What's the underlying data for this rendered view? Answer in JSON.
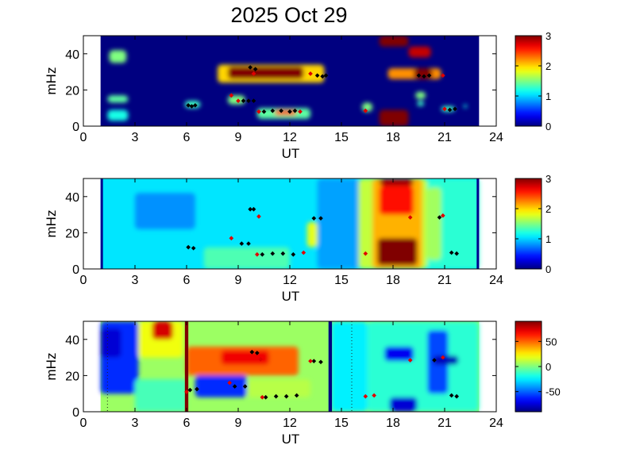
{
  "chart_data": {
    "type": "heatmap",
    "title": "2025 Oct 29",
    "panels": [
      {
        "id": "panel-1",
        "xlabel": "UT",
        "ylabel": "mHz",
        "xlim": [
          0,
          24
        ],
        "ylim": [
          0,
          50
        ],
        "x_ticks": [
          0,
          3,
          6,
          9,
          12,
          15,
          18,
          21,
          24
        ],
        "y_ticks": [
          0,
          20,
          40
        ],
        "data_x_range": [
          1,
          23
        ],
        "colorbar": {
          "min": 0,
          "max": 3,
          "ticks": [
            0,
            1,
            2,
            3
          ],
          "colormap": "jet"
        },
        "background_value": 0,
        "regions": [
          {
            "x0": 1.5,
            "x1": 2.5,
            "y0": 35,
            "y1": 42,
            "value": 1.5
          },
          {
            "x0": 1.4,
            "x1": 2.6,
            "y0": 13,
            "y1": 17,
            "value": 1.4
          },
          {
            "x0": 1.4,
            "x1": 2.6,
            "y0": 3,
            "y1": 9,
            "value": 1.2
          },
          {
            "x0": 5.9,
            "x1": 6.8,
            "y0": 10,
            "y1": 14,
            "value": 1.3
          },
          {
            "x0": 8.4,
            "x1": 9.4,
            "y0": 12,
            "y1": 17,
            "value": 1.5
          },
          {
            "x0": 7.8,
            "x1": 14.0,
            "y0": 24,
            "y1": 34,
            "value": 2.0
          },
          {
            "x0": 8.4,
            "x1": 12.8,
            "y0": 26,
            "y1": 33,
            "value": 3.0
          },
          {
            "x0": 10.1,
            "x1": 13.2,
            "y0": 4,
            "y1": 10,
            "value": 1.4
          },
          {
            "x0": 11.1,
            "x1": 12.4,
            "y0": 6,
            "y1": 9,
            "value": 2.5
          },
          {
            "x0": 16.2,
            "x1": 16.8,
            "y0": 8,
            "y1": 13,
            "value": 1.5
          },
          {
            "x0": 17.2,
            "x1": 18.9,
            "y0": 0,
            "y1": 9,
            "value": 3.0
          },
          {
            "x0": 17.2,
            "x1": 18.9,
            "y0": 44,
            "y1": 50,
            "value": 3.0
          },
          {
            "x0": 18.9,
            "x1": 20.2,
            "y0": 38,
            "y1": 44,
            "value": 2.8
          },
          {
            "x0": 17.7,
            "x1": 20.8,
            "y0": 26,
            "y1": 32,
            "value": 2.2
          },
          {
            "x0": 19.2,
            "x1": 20.3,
            "y0": 26,
            "y1": 32,
            "value": 3.0
          },
          {
            "x0": 19.3,
            "x1": 19.9,
            "y0": 15,
            "y1": 19,
            "value": 1.5
          },
          {
            "x0": 19.4,
            "x1": 19.8,
            "y0": 11,
            "y1": 14,
            "value": 1.3
          },
          {
            "x0": 20.8,
            "x1": 21.6,
            "y0": 8,
            "y1": 11,
            "value": 1.3
          },
          {
            "x0": 22.1,
            "x1": 22.3,
            "y0": 10,
            "y1": 12,
            "value": 1.2
          }
        ],
        "black_points": [
          [
            6.1,
            11.5
          ],
          [
            6.3,
            11
          ],
          [
            6.5,
            11.5
          ],
          [
            9.3,
            14
          ],
          [
            9.6,
            14
          ],
          [
            9.9,
            14
          ],
          [
            10.5,
            8
          ],
          [
            11,
            8.5
          ],
          [
            11.5,
            8.5
          ],
          [
            12,
            8
          ],
          [
            12.3,
            8.5
          ],
          [
            13.6,
            28
          ],
          [
            13.9,
            27.5
          ],
          [
            14.1,
            28
          ],
          [
            9.7,
            32.5
          ],
          [
            10.0,
            31.5
          ],
          [
            19.5,
            28
          ],
          [
            19.8,
            27.5
          ],
          [
            20.1,
            28
          ],
          [
            21.3,
            9
          ],
          [
            21.6,
            9.5
          ]
        ],
        "red_points": [
          [
            8.6,
            17
          ],
          [
            9.0,
            14
          ],
          [
            10.2,
            8
          ],
          [
            12.6,
            8
          ],
          [
            9.9,
            29
          ],
          [
            16.4,
            8.5
          ],
          [
            20.9,
            28
          ],
          [
            21.0,
            9.5
          ],
          [
            13.2,
            29
          ]
        ]
      },
      {
        "id": "panel-2",
        "xlabel": "UT",
        "ylabel": "mHz",
        "xlim": [
          0,
          24
        ],
        "ylim": [
          0,
          50
        ],
        "x_ticks": [
          0,
          3,
          6,
          9,
          12,
          15,
          18,
          21,
          24
        ],
        "y_ticks": [
          0,
          20,
          40
        ],
        "data_x_range": [
          1,
          23
        ],
        "colorbar": {
          "min": 0,
          "max": 3,
          "ticks": [
            0,
            1,
            2,
            3
          ],
          "colormap": "jet"
        },
        "background_value": 1.05,
        "regions": [
          {
            "x0": 3.0,
            "x1": 6.5,
            "y0": 22,
            "y1": 42,
            "value": 0.8
          },
          {
            "x0": 7.0,
            "x1": 12.0,
            "y0": 0,
            "y1": 12,
            "value": 1.35
          },
          {
            "x0": 13.6,
            "x1": 16.0,
            "y0": 0,
            "y1": 50,
            "value": 0.85
          },
          {
            "x0": 13.0,
            "x1": 13.6,
            "y0": 12,
            "y1": 26,
            "value": 1.8
          },
          {
            "x0": 16.0,
            "x1": 20.0,
            "y0": 0,
            "y1": 50,
            "value": 1.7
          },
          {
            "x0": 16.8,
            "x1": 19.7,
            "y0": 0,
            "y1": 50,
            "value": 2.1
          },
          {
            "x0": 17.2,
            "x1": 19.2,
            "y0": 30,
            "y1": 46,
            "value": 2.6
          },
          {
            "x0": 17.2,
            "x1": 19.2,
            "y0": 46,
            "y1": 50,
            "value": 2.9
          },
          {
            "x0": 17.1,
            "x1": 19.4,
            "y0": 2,
            "y1": 17,
            "value": 3.0
          },
          {
            "x0": 20.0,
            "x1": 23.0,
            "y0": 0,
            "y1": 50,
            "value": 1.25
          },
          {
            "x0": 20.0,
            "x1": 20.8,
            "y0": 5,
            "y1": 45,
            "value": 1.6
          }
        ],
        "black_points": [
          [
            6.1,
            12
          ],
          [
            6.4,
            11.5
          ],
          [
            9.2,
            14
          ],
          [
            9.6,
            14
          ],
          [
            10.4,
            8
          ],
          [
            11,
            8.5
          ],
          [
            11.6,
            8.5
          ],
          [
            12.2,
            8
          ],
          [
            13.4,
            28
          ],
          [
            13.8,
            28
          ],
          [
            9.7,
            33
          ],
          [
            9.9,
            33
          ],
          [
            20.7,
            28.5
          ],
          [
            21.4,
            9
          ],
          [
            21.7,
            8.5
          ]
        ],
        "red_points": [
          [
            8.6,
            17
          ],
          [
            10.2,
            29
          ],
          [
            16.4,
            8.5
          ],
          [
            19.0,
            28.5
          ],
          [
            20.9,
            29.5
          ],
          [
            12.8,
            9
          ],
          [
            10.1,
            8
          ]
        ]
      },
      {
        "id": "panel-3",
        "xlabel": "UT",
        "ylabel": "mHz",
        "xlim": [
          0,
          24
        ],
        "ylim": [
          0,
          50
        ],
        "x_ticks": [
          0,
          3,
          6,
          9,
          12,
          15,
          18,
          21,
          24
        ],
        "y_ticks": [
          0,
          20,
          40
        ],
        "data_x_range": [
          1,
          23
        ],
        "colorbar": {
          "min": -90,
          "max": 90,
          "ticks": [
            -50,
            0,
            50
          ],
          "colormap": "jet"
        },
        "background_value": 5,
        "regions": [
          {
            "x0": 1.0,
            "x1": 3.2,
            "y0": 10,
            "y1": 50,
            "value": -60
          },
          {
            "x0": 1.0,
            "x1": 2.2,
            "y0": 30,
            "y1": 46,
            "value": -75
          },
          {
            "x0": 3.2,
            "x1": 5.8,
            "y0": 30,
            "y1": 50,
            "value": 20
          },
          {
            "x0": 4.0,
            "x1": 5.2,
            "y0": 40,
            "y1": 50,
            "value": 75
          },
          {
            "x0": 3.0,
            "x1": 6.0,
            "y0": 0,
            "y1": 18,
            "value": -10
          },
          {
            "x0": 6.0,
            "x1": 12.5,
            "y0": 20,
            "y1": 36,
            "value": 50
          },
          {
            "x0": 8.0,
            "x1": 10.8,
            "y0": 26,
            "y1": 34,
            "value": 70
          },
          {
            "x0": 6.5,
            "x1": 9.5,
            "y0": 8,
            "y1": 20,
            "value": -60
          },
          {
            "x0": 9.5,
            "x1": 13.2,
            "y0": 8,
            "y1": 18,
            "value": 10
          },
          {
            "x0": 14.4,
            "x1": 16.5,
            "y0": 0,
            "y1": 50,
            "value": -25
          },
          {
            "x0": 16.5,
            "x1": 23.0,
            "y0": 0,
            "y1": 50,
            "value": -15
          },
          {
            "x0": 17.5,
            "x1": 19.2,
            "y0": 28,
            "y1": 36,
            "value": -70
          },
          {
            "x0": 17.8,
            "x1": 19.4,
            "y0": 0,
            "y1": 8,
            "value": -75
          },
          {
            "x0": 20.0,
            "x1": 21.2,
            "y0": 10,
            "y1": 45,
            "value": -55
          },
          {
            "x0": 20.3,
            "x1": 21.8,
            "y0": 26,
            "y1": 31,
            "value": -80
          }
        ],
        "lines": [
          {
            "x": 6.0,
            "value": 90,
            "width_hours": 0.2
          },
          {
            "x": 14.35,
            "value": -90,
            "width_hours": 0.2
          }
        ],
        "dotted_lines": [
          1.4,
          15.6
        ],
        "black_points": [
          [
            6.2,
            12
          ],
          [
            6.6,
            12.5
          ],
          [
            8.8,
            14
          ],
          [
            9.4,
            14
          ],
          [
            9.8,
            33
          ],
          [
            10.1,
            32.5
          ],
          [
            10.6,
            8
          ],
          [
            11.2,
            8.5
          ],
          [
            11.8,
            8.5
          ],
          [
            12.4,
            9
          ],
          [
            13.4,
            28
          ],
          [
            13.8,
            27.5
          ],
          [
            20.4,
            28.5
          ],
          [
            21.4,
            9
          ],
          [
            21.7,
            8.5
          ]
        ],
        "red_points": [
          [
            6.0,
            11
          ],
          [
            8.5,
            16
          ],
          [
            10.3,
            29
          ],
          [
            10.4,
            8
          ],
          [
            16.4,
            8.5
          ],
          [
            16.9,
            9
          ],
          [
            19.0,
            28.5
          ],
          [
            20.9,
            30
          ],
          [
            13.2,
            28
          ]
        ]
      }
    ]
  }
}
